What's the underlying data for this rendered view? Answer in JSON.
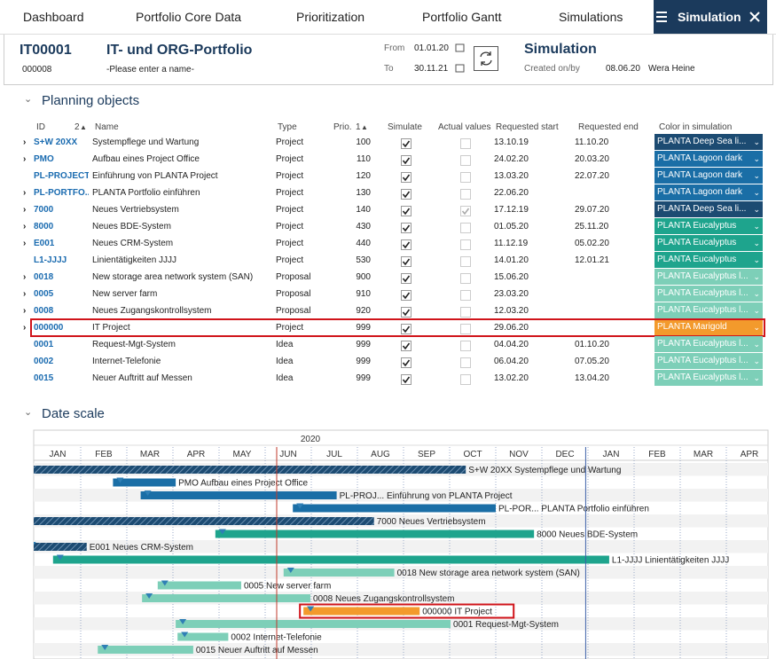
{
  "nav": {
    "tabs": [
      "Dashboard",
      "Portfolio Core Data",
      "Prioritization",
      "Portfolio Gantt",
      "Simulations"
    ],
    "active": "Simulation"
  },
  "header": {
    "id": "IT00001",
    "name": "IT- und ORG-Portfolio",
    "sub_id": "000008",
    "name_placeholder": "-Please enter a name-",
    "from_label": "From",
    "from": "01.01.20",
    "to_label": "To",
    "to": "30.11.21",
    "title": "Simulation",
    "created_label": "Created on/by",
    "created_date": "08.06.20",
    "created_by": "Wera Heine"
  },
  "planning": {
    "title": "Planning objects",
    "columns": [
      {
        "label": "ID",
        "sort": 2
      },
      {
        "label": "Name"
      },
      {
        "label": "Type"
      },
      {
        "label": "Prio.",
        "sort": 1
      },
      {
        "label": "Simulate"
      },
      {
        "label": "Actual values"
      },
      {
        "label": "Requested start"
      },
      {
        "label": "Requested end"
      },
      {
        "label": "Color in simulation"
      }
    ],
    "rows": [
      {
        "expand": true,
        "id": "S+W 20XX",
        "name": "Systempflege und Wartung",
        "type": "Project",
        "prio": 100,
        "simulate": true,
        "actual": false,
        "start": "13.10.19",
        "end": "11.10.20",
        "color_name": "PLANTA Deep Sea li...",
        "color": "#1c4b72"
      },
      {
        "expand": true,
        "id": "PMO",
        "name": "Aufbau eines Project Office",
        "type": "Project",
        "prio": 110,
        "simulate": true,
        "actual": false,
        "start": "24.02.20",
        "end": "20.03.20",
        "color_name": "PLANTA Lagoon dark",
        "color": "#1a6ea6"
      },
      {
        "expand": false,
        "id": "PL-PROJECT",
        "name": "Einführung von PLANTA Project",
        "type": "Project",
        "prio": 120,
        "simulate": true,
        "actual": false,
        "start": "13.03.20",
        "end": "22.07.20",
        "color_name": "PLANTA Lagoon dark",
        "color": "#1a6ea6"
      },
      {
        "expand": true,
        "id": "PL-PORTFO...",
        "name": "PLANTA Portfolio einführen",
        "type": "Project",
        "prio": 130,
        "simulate": true,
        "actual": false,
        "start": "22.06.20",
        "end": null,
        "color_name": "PLANTA Lagoon dark",
        "color": "#1a6ea6"
      },
      {
        "expand": true,
        "id": "7000",
        "name": "Neues Vertriebsystem",
        "type": "Project",
        "prio": 140,
        "simulate": true,
        "actual": true,
        "start": "17.12.19",
        "end": "29.07.20",
        "color_name": "PLANTA Deep Sea li...",
        "color": "#1c4b72"
      },
      {
        "expand": true,
        "id": "8000",
        "name": "Neues BDE-System",
        "type": "Project",
        "prio": 430,
        "simulate": true,
        "actual": false,
        "start": "01.05.20",
        "end": "25.11.20",
        "color_name": "PLANTA Eucalyptus",
        "color": "#1ea48d"
      },
      {
        "expand": true,
        "id": "E001",
        "name": "Neues CRM-System",
        "type": "Project",
        "prio": 440,
        "simulate": true,
        "actual": false,
        "start": "11.12.19",
        "end": "05.02.20",
        "color_name": "PLANTA Eucalyptus",
        "color": "#1ea48d"
      },
      {
        "expand": false,
        "id": "L1-JJJJ",
        "name": "Linientätigkeiten JJJJ",
        "type": "Project",
        "prio": 530,
        "simulate": true,
        "actual": false,
        "start": "14.01.20",
        "end": "12.01.21",
        "color_name": "PLANTA Eucalyptus",
        "color": "#1ea48d"
      },
      {
        "expand": true,
        "id": "0018",
        "name": "New storage area network system (SAN)",
        "type": "Proposal",
        "prio": 900,
        "simulate": true,
        "actual": false,
        "start": "15.06.20",
        "end": null,
        "color_name": "PLANTA Eucalyptus l...",
        "color": "#7dcfb8"
      },
      {
        "expand": true,
        "id": "0005",
        "name": "New server farm",
        "type": "Proposal",
        "prio": 910,
        "simulate": true,
        "actual": false,
        "start": "23.03.20",
        "end": null,
        "color_name": "PLANTA Eucalyptus l...",
        "color": "#7dcfb8"
      },
      {
        "expand": true,
        "id": "0008",
        "name": "Neues Zugangskontrollsystem",
        "type": "Proposal",
        "prio": 920,
        "simulate": true,
        "actual": false,
        "start": "12.03.20",
        "end": null,
        "color_name": "PLANTA Eucalyptus l...",
        "color": "#7dcfb8"
      },
      {
        "expand": true,
        "id": "000000",
        "name": "IT Project",
        "type": "Project",
        "prio": 999,
        "simulate": true,
        "actual": false,
        "start": "29.06.20",
        "end": null,
        "color_name": "PLANTA Marigold",
        "color": "#f39a2c",
        "highlighted": true
      },
      {
        "expand": false,
        "id": "0001",
        "name": "Request-Mgt-System",
        "type": "Idea",
        "prio": 999,
        "simulate": true,
        "actual": false,
        "start": "04.04.20",
        "end": "01.10.20",
        "color_name": "PLANTA Eucalyptus l...",
        "color": "#7dcfb8"
      },
      {
        "expand": false,
        "id": "0002",
        "name": "Internet-Telefonie",
        "type": "Idea",
        "prio": 999,
        "simulate": true,
        "actual": false,
        "start": "06.04.20",
        "end": "07.05.20",
        "color_name": "PLANTA Eucalyptus l...",
        "color": "#7dcfb8"
      },
      {
        "expand": false,
        "id": "0015",
        "name": "Neuer Auftritt auf Messen",
        "type": "Idea",
        "prio": 999,
        "simulate": true,
        "actual": false,
        "start": "13.02.20",
        "end": "13.04.20",
        "color_name": "PLANTA Eucalyptus l...",
        "color": "#7dcfb8"
      }
    ]
  },
  "date_scale": {
    "title": "Date scale",
    "year": "2020",
    "months": [
      "JAN",
      "FEB",
      "MAR",
      "APR",
      "MAY",
      "JUN",
      "JUL",
      "AUG",
      "SEP",
      "OCT",
      "NOV",
      "DEC",
      "JAN",
      "FEB",
      "MAR",
      "APR"
    ],
    "today": 5.25,
    "period_end": 11.95,
    "bars": [
      {
        "start": -2.6,
        "end": 9.35,
        "label": "S+W 20XX Systempflege und Wartung",
        "color": "#1c4b72",
        "hatched": true
      },
      {
        "start": 1.7,
        "end": 3.06,
        "label": "PMO Aufbau eines Project Office",
        "color": "#1a6ea6"
      },
      {
        "start": 2.3,
        "end": 6.55,
        "label": "PL-PROJ... Einführung von PLANTA Project",
        "color": "#1a6ea6"
      },
      {
        "start": 5.6,
        "end": 10.0,
        "label": "PL-POR... PLANTA Portfolio einführen",
        "color": "#1a6ea6"
      },
      {
        "start": -0.5,
        "end": 7.36,
        "label": "7000 Neues Vertriebsystem",
        "color": "#1c4b72",
        "hatched": true
      },
      {
        "start": 3.92,
        "end": 10.83,
        "label": "8000 Neues BDE-System",
        "color": "#1ea48d"
      },
      {
        "start": -0.2,
        "end": 1.13,
        "label": "E001 Neues CRM-System",
        "color": "#1ea48d",
        "hatched": true
      },
      {
        "start": 0.4,
        "end": 12.46,
        "label": "L1-JJJJ Linientätigkeiten JJJJ",
        "color": "#1ea48d"
      },
      {
        "start": 5.4,
        "end": 7.8,
        "label": "0018 New storage area network system (SAN)",
        "color": "#7dcfb8"
      },
      {
        "start": 2.67,
        "end": 4.48,
        "label": "0005 New server farm",
        "color": "#7dcfb8"
      },
      {
        "start": 2.33,
        "end": 5.98,
        "label": "0008 Neues Zugangskontrollsystem",
        "color": "#7dcfb8"
      },
      {
        "start": 5.83,
        "end": 8.35,
        "label": "000000 IT Project",
        "color": "#f39a2c",
        "highlighted": true
      },
      {
        "start": 3.06,
        "end": 9.02,
        "label": "0001 Request-Mgt-System",
        "color": "#7dcfb8"
      },
      {
        "start": 3.1,
        "end": 4.2,
        "label": "0002 Internet-Telefonie",
        "color": "#7dcfb8"
      },
      {
        "start": 1.37,
        "end": 3.44,
        "label": "0015 Neuer Auftritt auf Messen",
        "color": "#7dcfb8"
      }
    ]
  }
}
